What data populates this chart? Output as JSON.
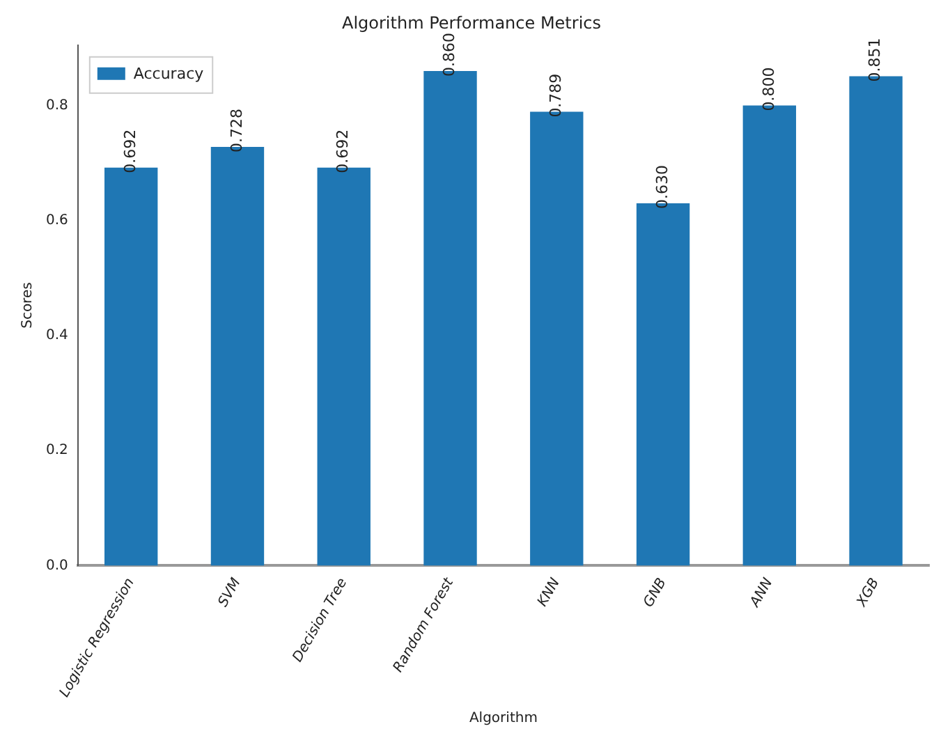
{
  "chart_data": {
    "type": "bar",
    "title": "Algorithm Performance Metrics",
    "xlabel": "Algorithm",
    "ylabel": "Scores",
    "categories": [
      "Logistic Regression",
      "SVM",
      "Decision Tree",
      "Random Forest",
      "KNN",
      "GNB",
      "ANN",
      "XGB"
    ],
    "series": [
      {
        "name": "Accuracy",
        "color": "#1f77b4",
        "values": [
          0.692,
          0.728,
          0.692,
          0.86,
          0.789,
          0.63,
          0.8,
          0.851
        ],
        "value_labels": [
          "0.692",
          "0.728",
          "0.692",
          "0.860",
          "0.789",
          "0.630",
          "0.800",
          "0.851"
        ]
      }
    ],
    "ylim": [
      0,
      0.905
    ],
    "yticks": [
      {
        "value": 0,
        "label": "0.0"
      },
      {
        "value": 0.2,
        "label": "0.2"
      },
      {
        "value": 0.4,
        "label": "0.4"
      },
      {
        "value": 0.6,
        "label": "0.6"
      },
      {
        "value": 0.8,
        "label": "0.8"
      }
    ],
    "legend": "top left",
    "grid": false
  }
}
